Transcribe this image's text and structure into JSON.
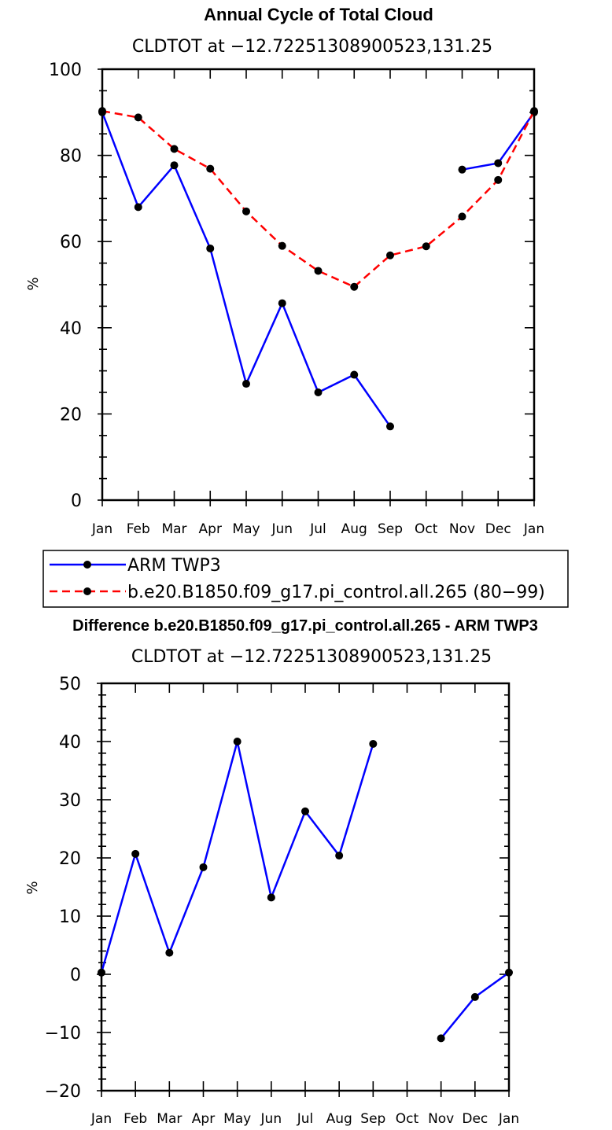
{
  "chart_data": [
    {
      "type": "line",
      "title": "Annual Cycle of Total Cloud",
      "subtitle": "CLDTOT at −12.72251308900523,131.25",
      "ylabel": "%",
      "xlabel": "",
      "ylim": [
        0,
        100
      ],
      "yticks": [
        "0",
        "20",
        "40",
        "60",
        "80",
        "100"
      ],
      "categories": [
        "Jan",
        "Feb",
        "Mar",
        "Apr",
        "May",
        "Jun",
        "Jul",
        "Aug",
        "Sep",
        "Oct",
        "Nov",
        "Dec",
        "Jan"
      ],
      "grid": false,
      "series": [
        {
          "name": "ARM TWP3",
          "color": "#0000ff",
          "dash": "solid",
          "values": [
            90,
            68,
            77.7,
            58.4,
            27,
            45.7,
            25,
            29.1,
            17.1,
            null,
            76.7,
            78.2,
            90
          ]
        },
        {
          "name": "b.e20.B1850.f09_g17.pi_control.all.265 (80−99)",
          "color": "#ff0000",
          "dash": "dashed",
          "values": [
            90.3,
            88.8,
            81.5,
            76.9,
            67,
            59,
            53.2,
            49.5,
            56.8,
            58.9,
            65.8,
            74.3,
            90.3
          ]
        }
      ],
      "legend_position": "below"
    },
    {
      "type": "line",
      "title": "Difference b.e20.B1850.f09_g17.pi_control.all.265 - ARM TWP3",
      "subtitle": "CLDTOT at −12.72251308900523,131.25",
      "ylabel": "%",
      "xlabel": "",
      "ylim": [
        -20,
        50
      ],
      "yticks": [
        "−20",
        "−10",
        "0",
        "10",
        "20",
        "30",
        "40",
        "50"
      ],
      "categories": [
        "Jan",
        "Feb",
        "Mar",
        "Apr",
        "May",
        "Jun",
        "Jul",
        "Aug",
        "Sep",
        "Oct",
        "Nov",
        "Dec",
        "Jan"
      ],
      "grid": false,
      "series": [
        {
          "color": "#0000ff",
          "dash": "solid",
          "values": [
            0.3,
            20.7,
            3.7,
            18.4,
            40,
            13.2,
            28,
            20.4,
            39.6,
            null,
            -11,
            -3.9,
            0.3
          ]
        }
      ]
    }
  ]
}
